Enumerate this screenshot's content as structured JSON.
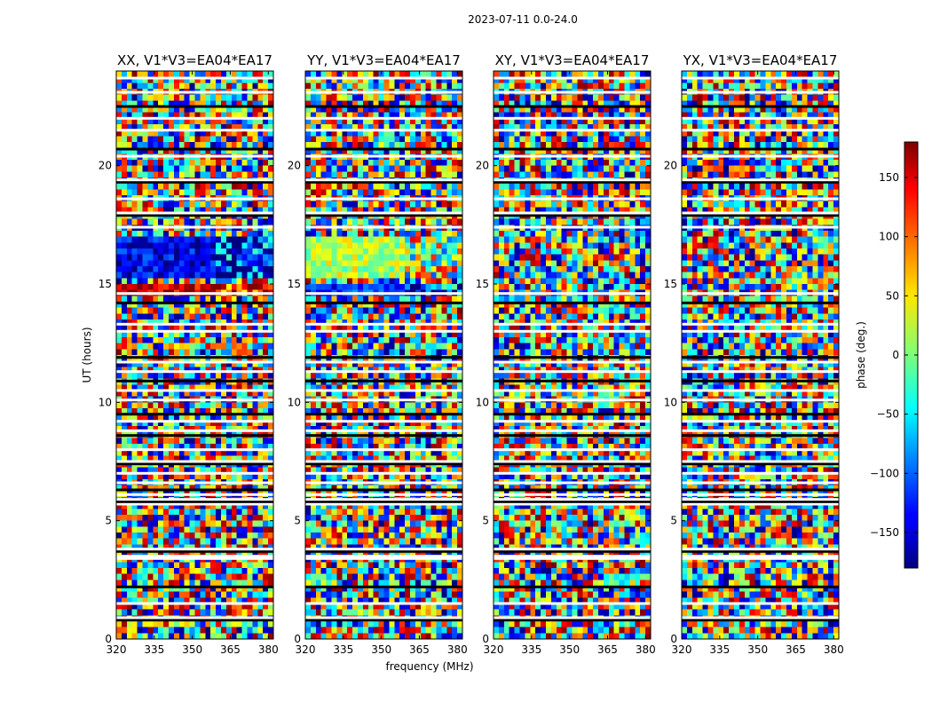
{
  "chart_data": {
    "type": "heatmap",
    "title": "2023-07-11 0.0-24.0",
    "xlabel": "frequency (MHz)",
    "ylabel": "UT (hours)",
    "xlim": [
      320,
      382
    ],
    "ylim": [
      0,
      24
    ],
    "xticks": [
      "320",
      "335",
      "350",
      "365",
      "380"
    ],
    "xtick_values": [
      320,
      335,
      350,
      365,
      380
    ],
    "yticks": [
      "0",
      "5",
      "10",
      "15",
      "20"
    ],
    "ytick_values": [
      0,
      5,
      10,
      15,
      20
    ],
    "colormap": "jet",
    "colorbar": {
      "label": "phase (deg.)",
      "vmin": -180,
      "vmax": 180,
      "ticks": [
        "−150",
        "−100",
        "−50",
        "0",
        "50",
        "100",
        "150"
      ],
      "tick_values": [
        -150,
        -100,
        -50,
        0,
        50,
        100,
        150
      ]
    },
    "panels": [
      {
        "title": "XX, V1*V3=EA04*EA17",
        "coherent_bands_hours": [
          [
            14.6,
            15.0
          ],
          [
            15.3,
            17.1
          ],
          [
            20.4,
            20.6
          ]
        ],
        "coherent_phase_deg": [
          150,
          -140,
          160
        ]
      },
      {
        "title": "YY, V1*V3=EA04*EA17",
        "coherent_bands_hours": [
          [
            14.6,
            15.0
          ],
          [
            15.3,
            17.1
          ],
          [
            20.4,
            20.6
          ]
        ],
        "coherent_phase_deg": [
          -120,
          20,
          -60
        ]
      },
      {
        "title": "XY, V1*V3=EA04*EA17",
        "coherent_bands_hours": [],
        "coherent_phase_deg": []
      },
      {
        "title": "YX, V1*V3=EA04*EA17",
        "coherent_bands_hours": [],
        "coherent_phase_deg": []
      }
    ],
    "flagged_hours": [
      0.8,
      0.9,
      1.5,
      2.2,
      3.4,
      3.5,
      3.7,
      3.8,
      5.7,
      5.8,
      5.9,
      6.1,
      6.3,
      6.6,
      7.0,
      7.4,
      7.5,
      8.0,
      8.6,
      8.8,
      9.2,
      9.5,
      10.1,
      10.5,
      10.9,
      11.3,
      11.7,
      11.9,
      13.0,
      13.3,
      14.2,
      14.6,
      17.4,
      17.9,
      18.0,
      18.6,
      19.3,
      19.4,
      20.4,
      20.7,
      21.5,
      22.0,
      22.5,
      23.1,
      23.7
    ]
  }
}
